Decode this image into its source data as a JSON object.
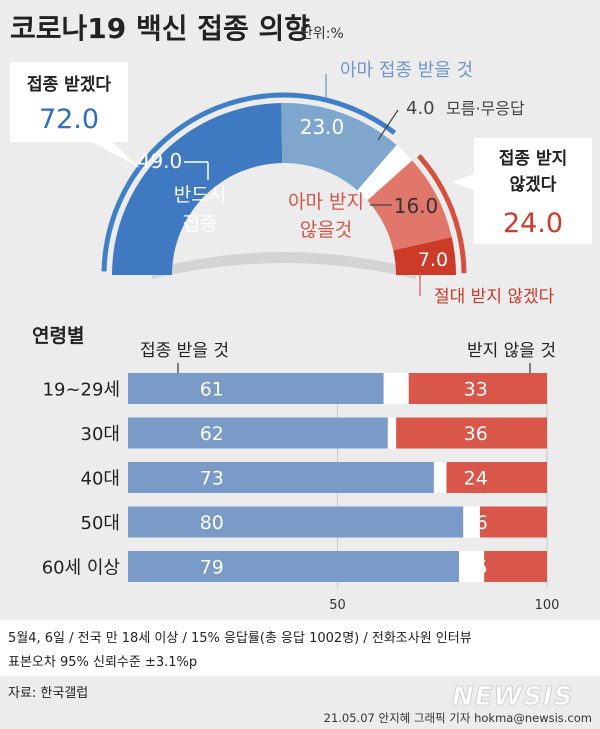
{
  "header": {
    "title": "코로나19 백신 접종 의향",
    "unit": "단위:%"
  },
  "chart_data": [
    {
      "type": "pie",
      "subtype": "semi-donut",
      "groups": [
        {
          "name": "접종 받겠다",
          "value": 72.0,
          "value_label": "72.0",
          "color": "#3f7fc7"
        },
        {
          "name_line1": "접종 받지",
          "name_line2": "않겠다",
          "value": 24.0,
          "value_label": "24.0",
          "color": "#d64f3e"
        }
      ],
      "slices": [
        {
          "label_line1": "반드시",
          "label_line2": "접종",
          "value": 49.0,
          "value_label": "49.0",
          "color": "#3e79c1"
        },
        {
          "label": "아마 접종 받을 것",
          "value": 23.0,
          "value_label": "23.0",
          "color": "#7fa6cc"
        },
        {
          "label": "모름·무응답",
          "value": 4.0,
          "value_label": "4.0",
          "color": "#ffffff"
        },
        {
          "label_line1": "아마 받지",
          "label_line2": "않을것",
          "value": 16.0,
          "value_label": "16.0",
          "color": "#e0776a"
        },
        {
          "label": "절대 받지 않겠다",
          "value": 7.0,
          "value_label": "7.0",
          "color": "#cc3a28"
        }
      ]
    },
    {
      "type": "bar",
      "subtype": "stacked-horizontal",
      "title": "연령별",
      "legend_left": "접종 받을 것",
      "legend_right": "받지 않을 것",
      "categories": [
        "19~29세",
        "30대",
        "40대",
        "50대",
        "60세 이상"
      ],
      "series": [
        {
          "name": "접종 받을 것",
          "values": [
            61,
            62,
            73,
            80,
            79
          ],
          "color": "#7a9bc7"
        },
        {
          "name": "받지 않을 것",
          "values": [
            33,
            36,
            24,
            16,
            15
          ],
          "color": "#d9564a"
        }
      ],
      "xlim": [
        0,
        100
      ],
      "xticks": [
        "50",
        "100"
      ]
    }
  ],
  "footer": {
    "note_line1": "5월4, 6일 / 전국 만 18세 이상 / 15% 응답률(총 응답 1002명) / 전화조사원 인터뷰",
    "note_line2": "표본오차 95% 신뢰수준 ±3.1%p",
    "source": "자료: 한국갤럽",
    "watermark": "NEWSIS",
    "credit": "21.05.07 안지혜 그래픽 기자  hokma@newsis.com"
  }
}
